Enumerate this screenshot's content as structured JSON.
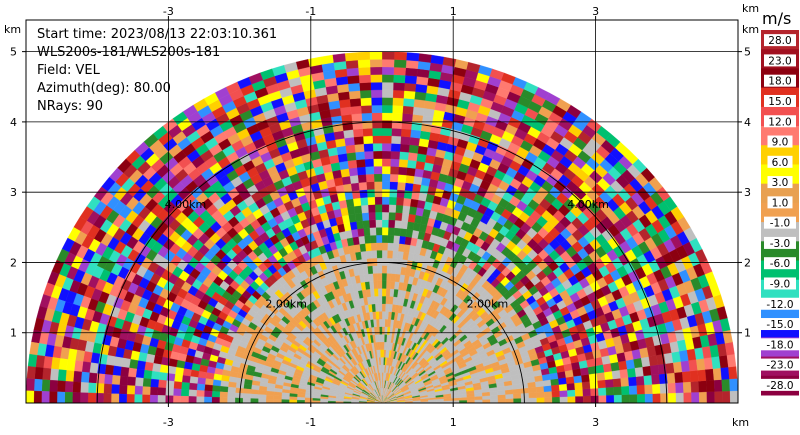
{
  "info": {
    "start_time": "Start time: 2023/08/13 22:03:10.361",
    "instrument": "WLS200s-181/WLS200s-181",
    "field": "Field: VEL",
    "azimuth": "Azimuth(deg): 80.00",
    "nrays": "NRays: 90"
  },
  "colorbar": {
    "unit": "m/s",
    "labels": [
      "28.0",
      "23.0",
      "18.0",
      "15.0",
      "12.0",
      "9.0",
      "6.0",
      "3.0",
      "1.0",
      "-1.0",
      "-3.0",
      "-6.0",
      "-9.0",
      "-12.0",
      "-15.0",
      "-18.0",
      "-23.0",
      "-28.0"
    ],
    "colors": [
      "#b4242c",
      "#a01020",
      "#8c0010",
      "#e03020",
      "#f25050",
      "#ff7a70",
      "#ffd000",
      "#ffff00",
      "#e8a050",
      "#f0a050",
      "#bfbfbf",
      "#2a8a2a",
      "#00c070",
      "#30e0c0",
      "#3090ff",
      "#1010ff",
      "#a040d0",
      "#a01060",
      "#8c0040"
    ]
  },
  "chart_data": {
    "type": "heatmap",
    "title": "",
    "x_unit": "km",
    "y_unit": "km",
    "x_ticks": [
      -3,
      -1,
      1,
      3
    ],
    "y_ticks": [
      1,
      2,
      3,
      4,
      5
    ],
    "xlim": [
      -5.0,
      5.0
    ],
    "ylim": [
      0,
      5.45
    ],
    "grid": true,
    "max_range_km": 5.0,
    "range_ring_labels": [
      "2.00km",
      "4.00km"
    ],
    "range_rings_km": [
      2,
      4
    ]
  }
}
